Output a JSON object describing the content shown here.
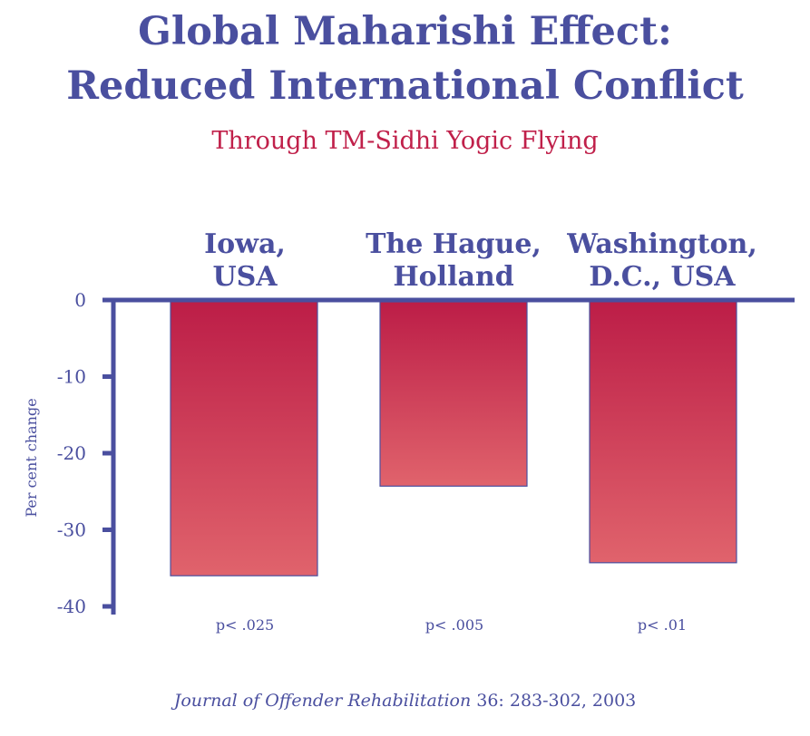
{
  "chart_data": {
    "type": "bar",
    "title": "Global Maharishi Effect:",
    "title_line2": "Reduced International Conflict",
    "subtitle": "Through TM-Sidhi Yogic Flying",
    "categories": [
      "Iowa, USA",
      "The Hague, Holland",
      "Washington, D.C., USA"
    ],
    "category_lines": [
      [
        "Iowa,",
        "USA"
      ],
      [
        "The Hague,",
        "Holland"
      ],
      [
        "Washington,",
        "D.C., USA"
      ]
    ],
    "values": [
      -36.0,
      -24.3,
      -34.3
    ],
    "p_values": [
      "p< .025",
      "p< .005",
      "p< .01"
    ],
    "ylabel": "Per cent change",
    "xlabel": "",
    "ylim": [
      -40,
      0
    ],
    "yticks": [
      "0",
      "-10",
      "-20",
      "-30",
      "-40"
    ],
    "grid": false,
    "source_italic": "Journal of Offender Rehabilitation",
    "source_rest": " 36: 283-302, 2003",
    "colors": {
      "axis": "#4a4f9f",
      "bar_top": "#bc1d47",
      "bar_bottom": "#e0636c",
      "subtitle": "#c0204a"
    }
  }
}
